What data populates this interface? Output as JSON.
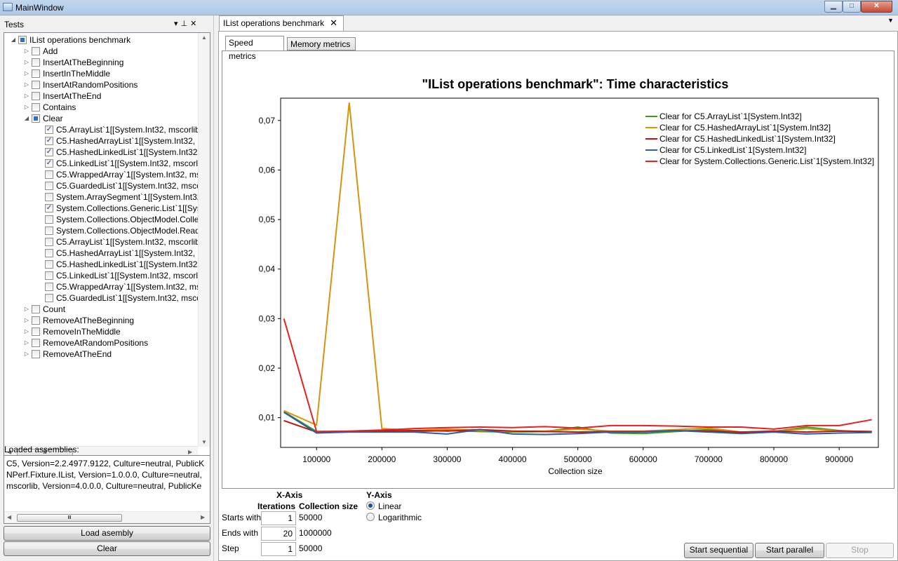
{
  "window": {
    "title": "MainWindow"
  },
  "tests_panel": {
    "header": "Tests",
    "tree": [
      {
        "label": "IList operations benchmark",
        "level": 0,
        "expander": "open",
        "check": "partial"
      },
      {
        "label": "Add",
        "level": 1,
        "expander": "closed",
        "check": "none"
      },
      {
        "label": "InsertAtTheBeginning",
        "level": 1,
        "expander": "closed",
        "check": "none"
      },
      {
        "label": "InsertInTheMiddle",
        "level": 1,
        "expander": "closed",
        "check": "none"
      },
      {
        "label": "InsertAtRandomPositions",
        "level": 1,
        "expander": "closed",
        "check": "none"
      },
      {
        "label": "InsertAtTheEnd",
        "level": 1,
        "expander": "closed",
        "check": "none"
      },
      {
        "label": "Contains",
        "level": 1,
        "expander": "closed",
        "check": "none"
      },
      {
        "label": "Clear",
        "level": 1,
        "expander": "open",
        "check": "partial"
      },
      {
        "label": "C5.ArrayList`1[[System.Int32, mscorlib,",
        "level": 2,
        "expander": "",
        "check": "checked"
      },
      {
        "label": "C5.HashedArrayList`1[[System.Int32, m",
        "level": 2,
        "expander": "",
        "check": "checked"
      },
      {
        "label": "C5.HashedLinkedList`1[[System.Int32, m",
        "level": 2,
        "expander": "",
        "check": "checked"
      },
      {
        "label": "C5.LinkedList`1[[System.Int32, mscorlib",
        "level": 2,
        "expander": "",
        "check": "checked"
      },
      {
        "label": "C5.WrappedArray`1[[System.Int32, msc",
        "level": 2,
        "expander": "",
        "check": "none"
      },
      {
        "label": "C5.GuardedList`1[[System.Int32, mscor",
        "level": 2,
        "expander": "",
        "check": "none"
      },
      {
        "label": "System.ArraySegment`1[[System.Int32,",
        "level": 2,
        "expander": "",
        "check": "none"
      },
      {
        "label": "System.Collections.Generic.List`1[[Syst",
        "level": 2,
        "expander": "",
        "check": "checked"
      },
      {
        "label": "System.Collections.ObjectModel.Colle",
        "level": 2,
        "expander": "",
        "check": "none"
      },
      {
        "label": "System.Collections.ObjectModel.ReadO",
        "level": 2,
        "expander": "",
        "check": "none"
      },
      {
        "label": "C5.ArrayList`1[[System.Int32, mscorlib,",
        "level": 2,
        "expander": "",
        "check": "none"
      },
      {
        "label": "C5.HashedArrayList`1[[System.Int32, m",
        "level": 2,
        "expander": "",
        "check": "none"
      },
      {
        "label": "C5.HashedLinkedList`1[[System.Int32, m",
        "level": 2,
        "expander": "",
        "check": "none"
      },
      {
        "label": "C5.LinkedList`1[[System.Int32, mscorlib",
        "level": 2,
        "expander": "",
        "check": "none"
      },
      {
        "label": "C5.WrappedArray`1[[System.Int32, msc",
        "level": 2,
        "expander": "",
        "check": "none"
      },
      {
        "label": "C5.GuardedList`1[[System.Int32, mscor",
        "level": 2,
        "expander": "",
        "check": "none"
      },
      {
        "label": "Count",
        "level": 1,
        "expander": "closed",
        "check": "none"
      },
      {
        "label": "RemoveAtTheBeginning",
        "level": 1,
        "expander": "closed",
        "check": "none"
      },
      {
        "label": "RemoveInTheMiddle",
        "level": 1,
        "expander": "closed",
        "check": "none"
      },
      {
        "label": "RemoveAtRandomPositions",
        "level": 1,
        "expander": "closed",
        "check": "none"
      },
      {
        "label": "RemoveAtTheEnd",
        "level": 1,
        "expander": "closed",
        "check": "none"
      }
    ],
    "loaded_assemblies_label": "Loaded assemblies:",
    "assemblies": [
      "C5, Version=2.2.4977.9122, Culture=neutral, PublicK",
      "NPerf.Fixture.IList, Version=1.0.0.0, Culture=neutral,",
      "mscorlib, Version=4.0.0.0, Culture=neutral, PublicKe"
    ],
    "load_button": "Load asembly",
    "clear_button": "Clear"
  },
  "document_tab": {
    "label": "IList operations benchmark",
    "close": "✕"
  },
  "subtabs": {
    "speed": "Speed metrics",
    "memory": "Memory metrics"
  },
  "chart_data": {
    "type": "line",
    "title": "\"IList operations benchmark\": Time characteristics",
    "xlabel": "Collection size",
    "ylabel": "",
    "xlim": [
      45000,
      960000
    ],
    "ylim": [
      0.004,
      0.0745
    ],
    "x_ticks": [
      100000,
      200000,
      300000,
      400000,
      500000,
      600000,
      700000,
      800000,
      900000
    ],
    "x_tick_labels": [
      "100000",
      "200000",
      "300000",
      "400000",
      "500000",
      "600000",
      "700000",
      "800000",
      "900000"
    ],
    "y_ticks": [
      0.01,
      0.02,
      0.03,
      0.04,
      0.05,
      0.06,
      0.07
    ],
    "y_tick_labels": [
      "0,01",
      "0,02",
      "0,03",
      "0,04",
      "0,05",
      "0,06",
      "0,07"
    ],
    "legend_position": "top-right",
    "x": [
      50000,
      100000,
      150000,
      200000,
      250000,
      300000,
      350000,
      400000,
      450000,
      500000,
      550000,
      600000,
      650000,
      700000,
      750000,
      800000,
      850000,
      900000,
      950000
    ],
    "series": [
      {
        "name": "Clear for C5.ArrayList`1[System.Int32]",
        "color": "#3c9a1e",
        "values": [
          0.0112,
          0.0072,
          0.0072,
          0.0074,
          0.0072,
          0.0074,
          0.0072,
          0.0071,
          0.0072,
          0.0081,
          0.0069,
          0.0068,
          0.0072,
          0.0076,
          0.0069,
          0.0072,
          0.0081,
          0.0074,
          0.0071
        ]
      },
      {
        "name": "Clear for C5.HashedArrayList`1[System.Int32]",
        "color": "#d3960a",
        "values": [
          0.0114,
          0.0085,
          0.0736,
          0.0078,
          0.0074,
          0.0077,
          0.0074,
          0.0072,
          0.0073,
          0.0077,
          0.0073,
          0.0073,
          0.0076,
          0.0079,
          0.0071,
          0.0072,
          0.0078,
          0.0073,
          0.0072
        ]
      },
      {
        "name": "Clear for C5.HashedLinkedList`1[System.Int32]",
        "color": "#c0150c",
        "values": [
          0.0094,
          0.0071,
          0.0072,
          0.0073,
          0.0074,
          0.0073,
          0.0076,
          0.0073,
          0.0072,
          0.0071,
          0.0072,
          0.0072,
          0.0074,
          0.0073,
          0.0071,
          0.0073,
          0.0071,
          0.0073,
          0.0072
        ]
      },
      {
        "name": "Clear for C5.LinkedList`1[System.Int32]",
        "color": "#2a5ea8",
        "values": [
          0.0111,
          0.0069,
          0.0071,
          0.0071,
          0.0071,
          0.0067,
          0.0076,
          0.0067,
          0.0066,
          0.0068,
          0.0071,
          0.0071,
          0.0074,
          0.0071,
          0.0068,
          0.0071,
          0.0067,
          0.0069,
          0.007
        ]
      },
      {
        "name": "Clear for System.Collections.Generic.List`1[System.Int32]",
        "color": "#e8201c",
        "values": [
          0.03,
          0.0072,
          0.0073,
          0.0075,
          0.0078,
          0.008,
          0.0081,
          0.008,
          0.0082,
          0.0079,
          0.0084,
          0.0084,
          0.0083,
          0.0081,
          0.0081,
          0.0077,
          0.0084,
          0.0084,
          0.0096
        ]
      }
    ]
  },
  "controls": {
    "x_axis_header": "X-Axis",
    "iterations_header": "Iterations",
    "collection_size_header": "Collection size",
    "y_axis_header": "Y-Axis",
    "starts_with_label": "Starts with",
    "ends_with_label": "Ends with",
    "step_label": "Step",
    "starts_with_value": "1",
    "ends_with_value": "20",
    "step_value": "1",
    "starts_with_size": "50000",
    "ends_with_size": "1000000",
    "step_size": "50000",
    "linear_label": "Linear",
    "log_label": "Logarithmic",
    "y_scale_selected": "Linear"
  },
  "buttons": {
    "start_sequential": "Start sequential",
    "start_parallel": "Start parallel",
    "stop": "Stop"
  }
}
